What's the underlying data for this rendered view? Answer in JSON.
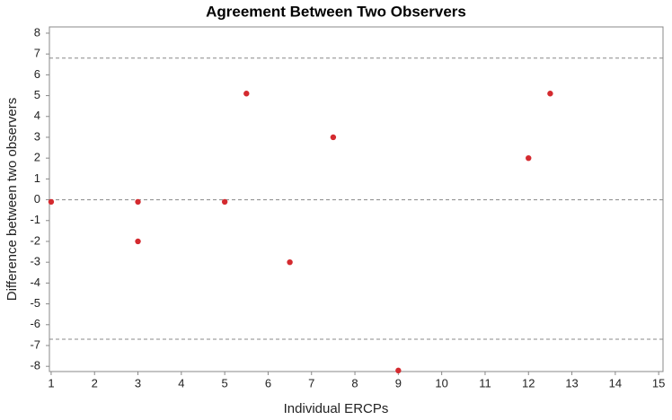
{
  "chart_data": {
    "type": "scatter",
    "title": "Agreement Between Two Observers",
    "x_label": "Individual ERCPs",
    "y_label": "Difference between two observers",
    "series": [
      {
        "color": "#d42a2f",
        "x": [
          1,
          3,
          3,
          5,
          5.5,
          6.5,
          7.5,
          9,
          12,
          12.5
        ],
        "values": [
          -0.1,
          -0.1,
          -2,
          -0.1,
          5.1,
          -3,
          3,
          -8.2,
          2,
          5.1
        ]
      }
    ],
    "reference_lines": [
      6.8,
      0,
      -6.7
    ],
    "xlim": [
      0.96,
      15.1
    ],
    "xticks": [
      1,
      2,
      3,
      4,
      5,
      6,
      7,
      8,
      9,
      10,
      11,
      12,
      13,
      14,
      15
    ],
    "ylim": [
      -8.25,
      8.3
    ],
    "yticks": [
      -8,
      -7,
      -6,
      -5,
      -4,
      -3,
      -2,
      -1,
      0,
      1,
      2,
      3,
      4,
      5,
      6,
      7,
      8
    ]
  }
}
